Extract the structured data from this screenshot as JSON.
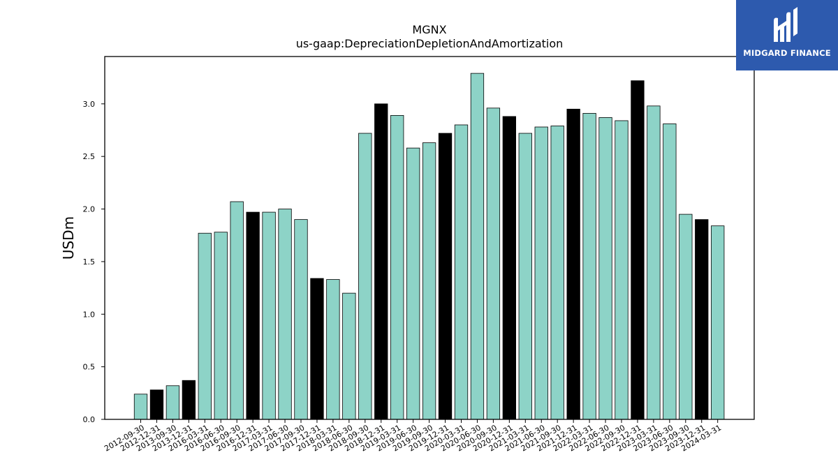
{
  "brand": {
    "name": "MIDGARD FINANCE",
    "background": "#2d5aae",
    "icon": "mf-monogram-icon"
  },
  "chart_data": {
    "type": "bar",
    "title": "MGNX",
    "subtitle": "us-gaap:DepreciationDepletionAndAmortization",
    "xlabel": "",
    "ylabel": "USDm",
    "ylim": [
      0,
      3.45
    ],
    "yticks": [
      0.0,
      0.5,
      1.0,
      1.5,
      2.0,
      2.5,
      3.0
    ],
    "ytick_labels": [
      "0.0",
      "0.5",
      "1.0",
      "1.5",
      "2.0",
      "2.5",
      "3.0"
    ],
    "grid": false,
    "colors": {
      "quarter": "#8dd3c7",
      "year_end": "#000000"
    },
    "categories": [
      "2012-09-30",
      "2012-12-31",
      "2013-09-30",
      "2013-12-31",
      "2016-03-31",
      "2016-06-30",
      "2016-09-30",
      "2016-12-31",
      "2017-03-31",
      "2017-06-30",
      "2017-09-30",
      "2017-12-31",
      "2018-03-31",
      "2018-06-30",
      "2018-09-30",
      "2018-12-31",
      "2019-03-31",
      "2019-06-30",
      "2019-09-30",
      "2019-12-31",
      "2020-03-31",
      "2020-06-30",
      "2020-09-30",
      "2020-12-31",
      "2021-03-31",
      "2021-06-30",
      "2021-09-30",
      "2021-12-31",
      "2022-03-31",
      "2022-06-30",
      "2022-09-30",
      "2022-12-31",
      "2023-03-31",
      "2023-06-30",
      "2023-09-30",
      "2023-12-31",
      "2024-03-31"
    ],
    "values": [
      0.24,
      0.28,
      0.32,
      0.37,
      1.77,
      1.78,
      2.07,
      1.97,
      1.97,
      2.0,
      1.9,
      1.34,
      1.33,
      1.2,
      2.72,
      3.0,
      2.89,
      2.58,
      2.63,
      2.72,
      2.8,
      3.29,
      2.96,
      2.88,
      2.72,
      2.78,
      2.79,
      2.95,
      2.91,
      2.87,
      2.84,
      3.22,
      2.98,
      2.81,
      1.95,
      1.9,
      1.84
    ],
    "highlight": [
      false,
      true,
      false,
      true,
      false,
      false,
      false,
      true,
      false,
      false,
      false,
      true,
      false,
      false,
      false,
      true,
      false,
      false,
      false,
      true,
      false,
      false,
      false,
      true,
      false,
      false,
      false,
      true,
      false,
      false,
      false,
      true,
      false,
      false,
      false,
      true,
      false
    ]
  }
}
